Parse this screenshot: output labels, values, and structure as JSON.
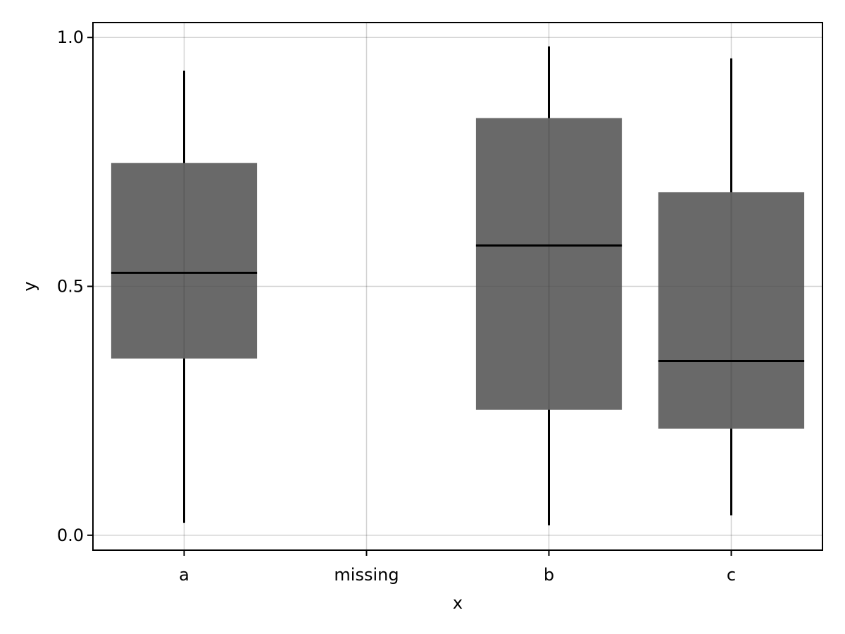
{
  "chart_data": {
    "type": "box",
    "title": "",
    "xlabel": "x",
    "ylabel": "y",
    "categories": [
      "a",
      "missing",
      "b",
      "c"
    ],
    "ylim": [
      -0.03,
      1.03
    ],
    "yticks": [
      0.0,
      0.5,
      1.0
    ],
    "ytick_labels": [
      "0.0",
      "0.5",
      "1.0"
    ],
    "grid": true,
    "box_color": "#666666",
    "line_color": "#000000",
    "boxes": [
      {
        "category": "a",
        "min": 0.025,
        "q1": 0.355,
        "median": 0.527,
        "q3": 0.748,
        "max": 0.933
      },
      {
        "category": "b",
        "min": 0.02,
        "q1": 0.252,
        "median": 0.582,
        "q3": 0.838,
        "max": 0.982
      },
      {
        "category": "c",
        "min": 0.04,
        "q1": 0.214,
        "median": 0.35,
        "q3": 0.689,
        "max": 0.958
      }
    ]
  }
}
